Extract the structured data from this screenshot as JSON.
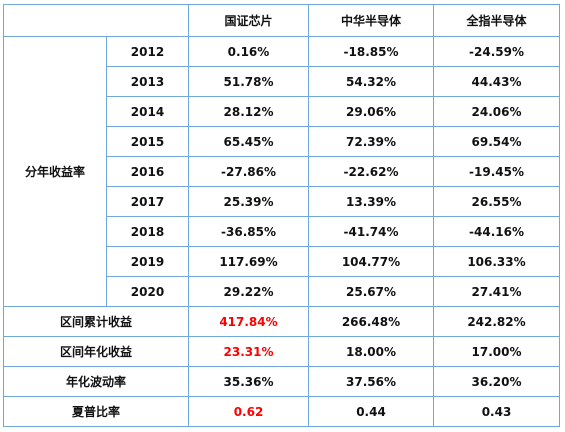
{
  "header": {
    "col1": "国证芯片",
    "col2": "中华半导体",
    "col3": "全指半导体"
  },
  "group_label": "分年收益率",
  "years": [
    {
      "year": "2012",
      "v1": "0.16%",
      "v2": "-18.85%",
      "v3": "-24.59%"
    },
    {
      "year": "2013",
      "v1": "51.78%",
      "v2": "54.32%",
      "v3": "44.43%"
    },
    {
      "year": "2014",
      "v1": "28.12%",
      "v2": "29.06%",
      "v3": "24.06%"
    },
    {
      "year": "2015",
      "v1": "65.45%",
      "v2": "72.39%",
      "v3": "69.54%"
    },
    {
      "year": "2016",
      "v1": "-27.86%",
      "v2": "-22.62%",
      "v3": "-19.45%"
    },
    {
      "year": "2017",
      "v1": "25.39%",
      "v2": "13.39%",
      "v3": "26.55%"
    },
    {
      "year": "2018",
      "v1": "-36.85%",
      "v2": "-41.74%",
      "v3": "-44.16%"
    },
    {
      "year": "2019",
      "v1": "117.69%",
      "v2": "104.77%",
      "v3": "106.33%"
    },
    {
      "year": "2020",
      "v1": "29.22%",
      "v2": "25.67%",
      "v3": "27.41%"
    }
  ],
  "summary": [
    {
      "label": "区间累计收益",
      "v1": "417.84%",
      "v2": "266.48%",
      "v3": "242.82%",
      "highlight": true
    },
    {
      "label": "区间年化收益",
      "v1": "23.31%",
      "v2": "18.00%",
      "v3": "17.00%",
      "highlight": true
    },
    {
      "label": "年化波动率",
      "v1": "35.36%",
      "v2": "37.56%",
      "v3": "36.20%",
      "highlight": false
    },
    {
      "label": "夏普比率",
      "v1": "0.62",
      "v2": "0.44",
      "v3": "0.43",
      "highlight": true
    }
  ],
  "colors": {
    "border": "#6fa8dc",
    "highlight": "#ff0000",
    "text": "#111111"
  }
}
